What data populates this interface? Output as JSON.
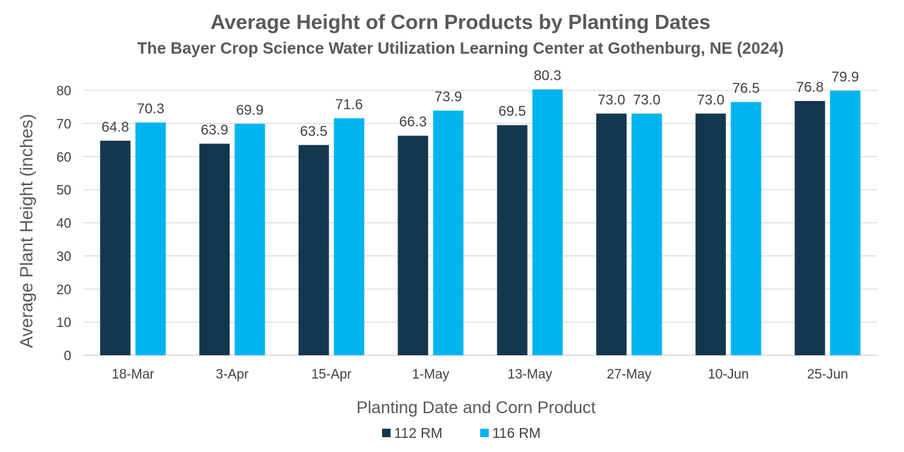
{
  "chart_data": {
    "type": "bar",
    "title": "Average Height of Corn Products by Planting Dates",
    "subtitle": "The Bayer Crop Science Water Utilization Learning Center at Gothenburg, NE (2024)",
    "xlabel": "Planting Date and Corn Product",
    "ylabel": "Average Plant Height (inches)",
    "categories": [
      "18-Mar",
      "3-Apr",
      "15-Apr",
      "1-May",
      "13-May",
      "27-May",
      "10-Jun",
      "25-Jun"
    ],
    "series": [
      {
        "name": "112 RM",
        "color": "#12374f",
        "values": [
          64.8,
          63.9,
          63.5,
          66.3,
          69.5,
          73.0,
          73.0,
          76.8
        ],
        "labels": [
          "64.8",
          "63.9",
          "63.5",
          "66.3",
          "69.5",
          "73.0",
          "73.0",
          "76.8"
        ]
      },
      {
        "name": "116 RM",
        "color": "#00b4f0",
        "values": [
          70.3,
          69.9,
          71.6,
          73.9,
          80.3,
          73.0,
          76.5,
          79.9
        ],
        "labels": [
          "70.3",
          "69.9",
          "71.6",
          "73.9",
          "80.3",
          "73.0",
          "76.5",
          "79.9"
        ]
      }
    ],
    "ylim": [
      0,
      80
    ],
    "yticks": [
      0,
      10,
      20,
      30,
      40,
      50,
      60,
      70,
      80
    ],
    "grid": true,
    "legend_position": "bottom"
  }
}
